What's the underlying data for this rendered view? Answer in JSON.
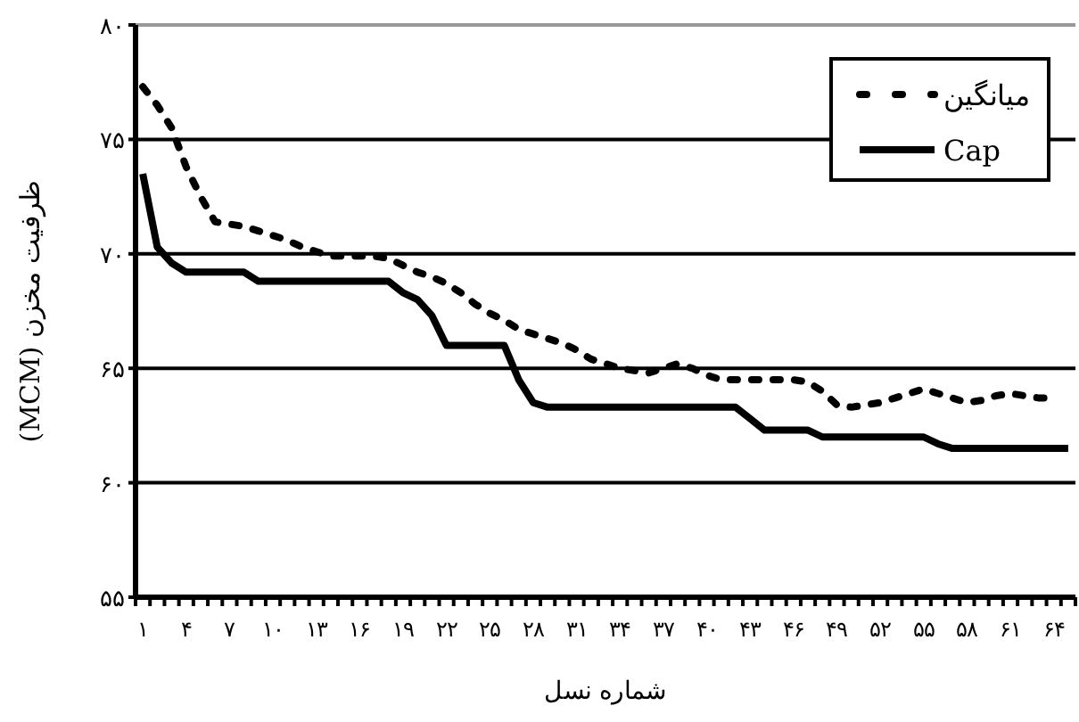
{
  "chart_data": {
    "type": "line",
    "xlabel": "شماره نسل",
    "ylabel": "ظرفیت مخزن (MCM)",
    "categories": [
      "۱",
      null,
      null,
      "۴",
      null,
      null,
      "۷",
      null,
      null,
      "۱۰",
      null,
      null,
      "۱۳",
      null,
      null,
      "۱۶",
      null,
      null,
      "۱۹",
      null,
      null,
      "۲۲",
      null,
      null,
      "۲۵",
      null,
      null,
      "۲۸",
      null,
      null,
      "۳۱",
      null,
      null,
      "۳۴",
      null,
      null,
      "۳۷",
      null,
      null,
      "۴۰",
      null,
      null,
      "۴۳",
      null,
      null,
      "۴۶",
      null,
      null,
      "۴۹",
      null,
      null,
      "۵۲",
      null,
      null,
      "۵۵",
      null,
      null,
      "۵۸",
      null,
      null,
      "۶۱",
      null,
      null,
      "۶۴",
      null
    ],
    "series": [
      {
        "name": "میانگین",
        "color": "#000000",
        "line_style": "dotted",
        "values": [
          77.3,
          76.5,
          75.5,
          73.8,
          72.5,
          71.4,
          71.3,
          71.2,
          71.0,
          70.8,
          70.6,
          70.3,
          70.1,
          69.9,
          69.9,
          69.9,
          69.9,
          69.8,
          69.5,
          69.2,
          69.0,
          68.7,
          68.3,
          67.8,
          67.4,
          67.1,
          66.7,
          66.5,
          66.3,
          66.1,
          65.8,
          65.4,
          65.2,
          65.0,
          64.9,
          64.8,
          65.0,
          65.2,
          65.0,
          64.7,
          64.5,
          64.5,
          64.5,
          64.5,
          64.5,
          64.5,
          64.4,
          64.0,
          63.4,
          63.3,
          63.4,
          63.5,
          63.7,
          63.9,
          64.1,
          63.9,
          63.7,
          63.5,
          63.6,
          63.8,
          63.9,
          63.8,
          63.7,
          63.7,
          null
        ]
      },
      {
        "name": "Cap",
        "color": "#000000",
        "line_style": "solid",
        "values": [
          73.5,
          70.3,
          69.6,
          69.2,
          69.2,
          69.2,
          69.2,
          69.2,
          68.8,
          68.8,
          68.8,
          68.8,
          68.8,
          68.8,
          68.8,
          68.8,
          68.8,
          68.8,
          68.3,
          68.0,
          67.3,
          66.0,
          66.0,
          66.0,
          66.0,
          66.0,
          64.5,
          63.5,
          63.3,
          63.3,
          63.3,
          63.3,
          63.3,
          63.3,
          63.3,
          63.3,
          63.3,
          63.3,
          63.3,
          63.3,
          63.3,
          63.3,
          62.8,
          62.3,
          62.3,
          62.3,
          62.3,
          62.0,
          62.0,
          62.0,
          62.0,
          62.0,
          62.0,
          62.0,
          62.0,
          61.7,
          61.5,
          61.5,
          61.5,
          61.5,
          61.5,
          61.5,
          61.5,
          61.5,
          61.5
        ]
      }
    ],
    "ylim": [
      55,
      80
    ],
    "yticks": [
      {
        "value": 55,
        "label": "۵۵"
      },
      {
        "value": 60,
        "label": "۶۰"
      },
      {
        "value": 65,
        "label": "۶۵"
      },
      {
        "value": 70,
        "label": "۷۰"
      },
      {
        "value": 75,
        "label": "۷۵"
      },
      {
        "value": 80,
        "label": "۸۰"
      }
    ],
    "grid": "y",
    "legend": "top right",
    "marker": "none"
  }
}
